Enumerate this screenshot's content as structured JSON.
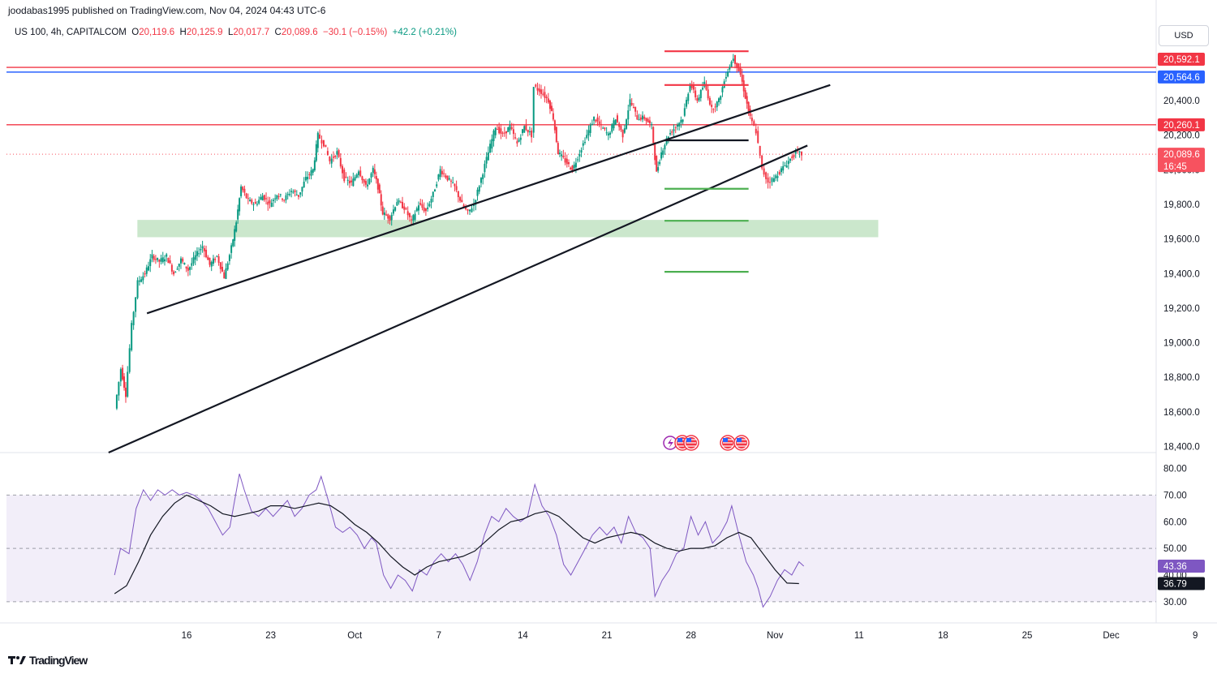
{
  "header": {
    "publish_line": "joodabas1995 published on TradingView.com, Nov 04, 2024 04:43 UTC-6",
    "symbol": "US 100, 4h, CAPITALCOM",
    "ohlc": {
      "o_label": "O",
      "o": "20,119.6",
      "h_label": "H",
      "h": "20,125.9",
      "l_label": "L",
      "l": "20,017.7",
      "c_label": "C",
      "c": "20,089.6",
      "change": "−30.1 (−0.15%)",
      "extra": "+42.2 (+0.21%)"
    },
    "currency_button": "USD"
  },
  "footer": {
    "brand": "TradingView",
    "logo_icon": "tradingview-logo-icon"
  },
  "colors": {
    "up": "#089981",
    "down": "#f23645",
    "rsi": "#7e57c2",
    "rsi_ma": "#131722",
    "support_zone": "#c8e6c9"
  },
  "chart_data": [
    {
      "type": "candlestick",
      "x_ticks": [
        "16",
        "23",
        "Oct",
        "7",
        "14",
        "21",
        "28",
        "Nov",
        "11",
        "18",
        "25",
        "Dec",
        "9"
      ],
      "y_ticks": [
        18400,
        18600,
        18800,
        19000,
        19200,
        19400,
        19600,
        19800,
        20000,
        20200,
        20400
      ],
      "y_tick_labels": [
        "18,400.0",
        "18,600.0",
        "18,800.0",
        "19,000.0",
        "19,200.0",
        "19,400.0",
        "19,600.0",
        "19,800.0",
        "20,000.0",
        "20,200.0",
        "20,400.0"
      ],
      "ylim": [
        18365,
        20700
      ],
      "price_path": [
        [
          9.1,
          18620
        ],
        [
          9.6,
          18850
        ],
        [
          10.0,
          18700
        ],
        [
          10.5,
          19100
        ],
        [
          11.0,
          19350
        ],
        [
          11.6,
          19400
        ],
        [
          12.2,
          19500
        ],
        [
          12.8,
          19470
        ],
        [
          13.4,
          19500
        ],
        [
          14.0,
          19400
        ],
        [
          14.6,
          19480
        ],
        [
          15.2,
          19420
        ],
        [
          15.8,
          19500
        ],
        [
          16.4,
          19560
        ],
        [
          17.0,
          19450
        ],
        [
          17.6,
          19500
        ],
        [
          18.2,
          19380
        ],
        [
          18.8,
          19550
        ],
        [
          19.2,
          19700
        ],
        [
          19.6,
          19900
        ],
        [
          20.2,
          19820
        ],
        [
          20.8,
          19800
        ],
        [
          21.4,
          19850
        ],
        [
          22.0,
          19800
        ],
        [
          22.6,
          19860
        ],
        [
          23.2,
          19830
        ],
        [
          23.8,
          19880
        ],
        [
          24.4,
          19850
        ],
        [
          25.0,
          19950
        ],
        [
          25.6,
          20000
        ],
        [
          26.0,
          20200
        ],
        [
          26.5,
          20150
        ],
        [
          27.0,
          20050
        ],
        [
          27.6,
          20100
        ],
        [
          28.2,
          19950
        ],
        [
          28.8,
          19920
        ],
        [
          29.4,
          20000
        ],
        [
          30.0,
          19900
        ],
        [
          30.6,
          20000
        ],
        [
          31.0,
          19900
        ],
        [
          31.4,
          19750
        ],
        [
          32.0,
          19720
        ],
        [
          32.6,
          19820
        ],
        [
          33.2,
          19780
        ],
        [
          33.8,
          19700
        ],
        [
          34.4,
          19800
        ],
        [
          35.0,
          19760
        ],
        [
          35.6,
          19860
        ],
        [
          36.2,
          20000
        ],
        [
          36.8,
          19950
        ],
        [
          37.4,
          19900
        ],
        [
          38.0,
          19800
        ],
        [
          38.5,
          19750
        ],
        [
          39.0,
          19800
        ],
        [
          39.6,
          19950
        ],
        [
          40.2,
          20100
        ],
        [
          40.8,
          20250
        ],
        [
          41.4,
          20200
        ],
        [
          42.0,
          20250
        ],
        [
          42.6,
          20150
        ],
        [
          43.2,
          20250
        ],
        [
          43.8,
          20200
        ],
        [
          44.0,
          20480
        ],
        [
          44.6,
          20450
        ],
        [
          45.2,
          20400
        ],
        [
          45.6,
          20300
        ],
        [
          46.0,
          20100
        ],
        [
          46.6,
          20050
        ],
        [
          47.2,
          20000
        ],
        [
          47.8,
          20100
        ],
        [
          48.4,
          20200
        ],
        [
          49.0,
          20300
        ],
        [
          49.6,
          20250
        ],
        [
          50.2,
          20200
        ],
        [
          50.8,
          20300
        ],
        [
          51.4,
          20200
        ],
        [
          52.0,
          20400
        ],
        [
          52.6,
          20300
        ],
        [
          53.2,
          20300
        ],
        [
          53.8,
          20250
        ],
        [
          54.2,
          19980
        ],
        [
          54.6,
          20100
        ],
        [
          55.2,
          20200
        ],
        [
          55.8,
          20250
        ],
        [
          56.4,
          20300
        ],
        [
          57.0,
          20500
        ],
        [
          57.6,
          20400
        ],
        [
          58.2,
          20500
        ],
        [
          58.8,
          20350
        ],
        [
          59.4,
          20400
        ],
        [
          60.0,
          20550
        ],
        [
          60.6,
          20650
        ],
        [
          61.2,
          20550
        ],
        [
          61.6,
          20420
        ],
        [
          62.0,
          20300
        ],
        [
          62.5,
          20220
        ],
        [
          63.0,
          20000
        ],
        [
          63.5,
          19930
        ],
        [
          64.0,
          19950
        ],
        [
          64.6,
          20000
        ],
        [
          65.2,
          20050
        ],
        [
          65.8,
          20100
        ],
        [
          66.3,
          20089.6
        ]
      ]
    },
    {
      "type": "line",
      "name": "RSI",
      "y_ticks": [
        30,
        40,
        50,
        60,
        70,
        80
      ],
      "y_tick_labels": [
        "30.00",
        "40.00",
        "50.00",
        "60.00",
        "70.00",
        "80.00"
      ],
      "ylim": [
        26,
        82
      ],
      "band": [
        30,
        70
      ],
      "midline": 50,
      "rsi": [
        [
          9.0,
          40
        ],
        [
          9.5,
          50
        ],
        [
          10.2,
          48
        ],
        [
          10.8,
          65
        ],
        [
          11.4,
          72
        ],
        [
          12.0,
          68
        ],
        [
          12.6,
          72
        ],
        [
          13.2,
          70
        ],
        [
          13.8,
          72
        ],
        [
          14.4,
          70
        ],
        [
          15.0,
          71
        ],
        [
          15.6,
          70
        ],
        [
          16.2,
          68
        ],
        [
          16.8,
          65
        ],
        [
          17.4,
          60
        ],
        [
          18.0,
          55
        ],
        [
          18.6,
          58
        ],
        [
          19.0,
          68
        ],
        [
          19.4,
          78
        ],
        [
          19.8,
          72
        ],
        [
          20.4,
          64
        ],
        [
          21.0,
          62
        ],
        [
          21.6,
          65
        ],
        [
          22.2,
          62
        ],
        [
          22.8,
          65
        ],
        [
          23.4,
          68
        ],
        [
          24.0,
          62
        ],
        [
          24.6,
          65
        ],
        [
          25.2,
          70
        ],
        [
          25.8,
          72
        ],
        [
          26.2,
          77
        ],
        [
          26.8,
          68
        ],
        [
          27.4,
          58
        ],
        [
          28.0,
          56
        ],
        [
          28.6,
          58
        ],
        [
          29.2,
          55
        ],
        [
          29.8,
          50
        ],
        [
          30.4,
          54
        ],
        [
          30.8,
          52
        ],
        [
          31.4,
          40
        ],
        [
          32.0,
          35
        ],
        [
          32.6,
          40
        ],
        [
          33.2,
          38
        ],
        [
          33.8,
          34
        ],
        [
          34.4,
          42
        ],
        [
          35.0,
          40
        ],
        [
          35.6,
          45
        ],
        [
          36.2,
          48
        ],
        [
          36.8,
          45
        ],
        [
          37.4,
          48
        ],
        [
          38.0,
          44
        ],
        [
          38.6,
          38
        ],
        [
          39.2,
          45
        ],
        [
          39.8,
          55
        ],
        [
          40.4,
          62
        ],
        [
          41.0,
          60
        ],
        [
          41.6,
          65
        ],
        [
          42.2,
          62
        ],
        [
          42.8,
          60
        ],
        [
          43.4,
          62
        ],
        [
          44.0,
          74
        ],
        [
          44.6,
          66
        ],
        [
          45.2,
          62
        ],
        [
          45.8,
          55
        ],
        [
          46.4,
          44
        ],
        [
          47.0,
          40
        ],
        [
          47.6,
          45
        ],
        [
          48.2,
          50
        ],
        [
          48.8,
          55
        ],
        [
          49.4,
          58
        ],
        [
          50.0,
          55
        ],
        [
          50.6,
          58
        ],
        [
          51.2,
          52
        ],
        [
          51.8,
          62
        ],
        [
          52.4,
          56
        ],
        [
          53.0,
          54
        ],
        [
          53.6,
          50
        ],
        [
          54.0,
          32
        ],
        [
          54.6,
          38
        ],
        [
          55.2,
          42
        ],
        [
          55.8,
          48
        ],
        [
          56.4,
          50
        ],
        [
          57.0,
          62
        ],
        [
          57.6,
          55
        ],
        [
          58.2,
          60
        ],
        [
          58.8,
          52
        ],
        [
          59.4,
          55
        ],
        [
          60.0,
          60
        ],
        [
          60.4,
          66
        ],
        [
          61.0,
          55
        ],
        [
          61.6,
          45
        ],
        [
          62.2,
          40
        ],
        [
          62.6,
          35
        ],
        [
          63.0,
          28
        ],
        [
          63.6,
          32
        ],
        [
          64.2,
          38
        ],
        [
          64.8,
          42
        ],
        [
          65.4,
          40
        ],
        [
          66.0,
          45
        ],
        [
          66.4,
          43.36
        ]
      ],
      "rsi_ma": [
        [
          9.0,
          33
        ],
        [
          10.0,
          36
        ],
        [
          11.0,
          45
        ],
        [
          12.0,
          55
        ],
        [
          13.0,
          62
        ],
        [
          14.0,
          67
        ],
        [
          15.0,
          70
        ],
        [
          16.0,
          68
        ],
        [
          17.0,
          66
        ],
        [
          18.0,
          63
        ],
        [
          19.0,
          62
        ],
        [
          20.0,
          63
        ],
        [
          21.0,
          64
        ],
        [
          22.0,
          66
        ],
        [
          23.0,
          66
        ],
        [
          24.0,
          65
        ],
        [
          25.0,
          66
        ],
        [
          26.0,
          67
        ],
        [
          27.0,
          66
        ],
        [
          28.0,
          63
        ],
        [
          29.0,
          59
        ],
        [
          30.0,
          56
        ],
        [
          31.0,
          52
        ],
        [
          32.0,
          47
        ],
        [
          33.0,
          43
        ],
        [
          34.0,
          40
        ],
        [
          35.0,
          43
        ],
        [
          36.0,
          45
        ],
        [
          37.0,
          46
        ],
        [
          38.0,
          47
        ],
        [
          39.0,
          49
        ],
        [
          40.0,
          53
        ],
        [
          41.0,
          57
        ],
        [
          42.0,
          60
        ],
        [
          43.0,
          61
        ],
        [
          44.0,
          63
        ],
        [
          45.0,
          64
        ],
        [
          46.0,
          62
        ],
        [
          47.0,
          58
        ],
        [
          48.0,
          54
        ],
        [
          49.0,
          52
        ],
        [
          50.0,
          54
        ],
        [
          51.0,
          55
        ],
        [
          52.0,
          56
        ],
        [
          53.0,
          55
        ],
        [
          54.0,
          52
        ],
        [
          55.0,
          50
        ],
        [
          56.0,
          49
        ],
        [
          57.0,
          50
        ],
        [
          58.0,
          50
        ],
        [
          59.0,
          51
        ],
        [
          60.0,
          54
        ],
        [
          61.0,
          56
        ],
        [
          62.0,
          54
        ],
        [
          63.0,
          48
        ],
        [
          64.0,
          42
        ],
        [
          65.0,
          37
        ],
        [
          66.0,
          36.79
        ]
      ]
    }
  ],
  "price_labels": {
    "p1": {
      "text": "20,592.1",
      "color": "#f23645"
    },
    "p2": {
      "text": "20,564.6",
      "color": "#2962ff"
    },
    "p3": {
      "text": "20,260.1",
      "color": "#f23645"
    },
    "current": {
      "text": "20,089.6",
      "timer": "16:45",
      "color": "#f7525f"
    },
    "rsi_value": {
      "text": "43.36",
      "color": "#7e57c2"
    },
    "rsi_ma_value": {
      "text": "36.79",
      "color": "#131722"
    }
  },
  "drawings": {
    "hlines": [
      {
        "price": 20592.1,
        "color": "#f23645"
      },
      {
        "price": 20564.6,
        "color": "#2962ff"
      },
      {
        "price": 20260.1,
        "color": "#f23645"
      }
    ],
    "targets": [
      {
        "price": 20685,
        "color": "#f23645"
      },
      {
        "price": 20490,
        "color": "#f23645"
      },
      {
        "price": 20170,
        "color": "#131722"
      },
      {
        "price": 19890,
        "color": "#4caf50"
      },
      {
        "price": 19705,
        "color": "#4caf50"
      },
      {
        "price": 19410,
        "color": "#4caf50"
      }
    ],
    "support_zone": {
      "from": 19610,
      "to": 19710
    },
    "trendlines": [
      {
        "from": [
          11.7,
          19170
        ],
        "to": [
          68.6,
          20490
        ]
      },
      {
        "from": [
          8.5,
          18365
        ],
        "to": [
          66.7,
          20140
        ]
      }
    ]
  },
  "event_icons": [
    "flash-event-icon",
    "us-flag-icon",
    "us-flag-icon",
    "us-flag-icon",
    "us-flag-icon"
  ]
}
